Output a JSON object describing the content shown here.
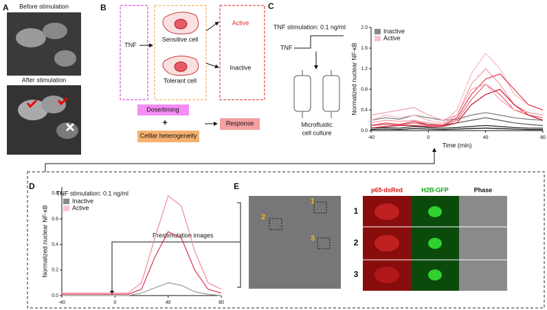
{
  "panel_labels": [
    "A",
    "B",
    "C",
    "D",
    "E"
  ],
  "panel_a": {
    "before": "Before stimulation",
    "after": "After stimulation"
  },
  "panel_b": {
    "input": "TNF",
    "sensitive": "Sensitive cell",
    "tolerant": "Tolerant cell",
    "active": "Active",
    "inactive": "Inactive",
    "dose": "Dose/timing",
    "plus": "+",
    "heterogeneity": "Celllar heterogeneity",
    "response": "Response"
  },
  "panel_c": {
    "stimulation": "TNF stimulation: 0.1 ng/ml",
    "input": "TNF",
    "culture": [
      "Microfluidic",
      "cell culture"
    ]
  },
  "panel_e": {
    "annotation": "Prestimulation images",
    "regions": [
      "1",
      "2",
      "3"
    ],
    "channels": [
      "p65-dsRed",
      "H2B-GFP",
      "Phase"
    ],
    "rows": [
      "1",
      "2",
      "3"
    ]
  },
  "chart_data": [
    {
      "type": "line",
      "x_label": "Time (min)",
      "y_label": "Normalized nuclear NF-κB",
      "x": [
        -40,
        -30,
        -20,
        -10,
        0,
        10,
        20,
        30,
        40,
        50,
        60,
        70,
        80
      ],
      "xlim": [
        -40,
        80
      ],
      "xticks": [
        -40,
        0,
        40,
        80
      ],
      "ylim": [
        0,
        2
      ],
      "yticks": [
        {
          "value": 0,
          "label": "0.0"
        },
        {
          "value": 0.4,
          "label": "0.4"
        },
        {
          "value": 0.8,
          "label": "0.8"
        },
        {
          "value": 1.2,
          "label": "1.2"
        },
        {
          "value": 1.6,
          "label": "1.6"
        },
        {
          "value": 2,
          "label": "2.0"
        }
      ],
      "legend": [
        {
          "name": "Inactive",
          "color": "#888888"
        },
        {
          "name": "Active",
          "color": "#f7c4cc"
        }
      ],
      "series": [
        {
          "color": "#555555",
          "values": [
            0.1,
            0.12,
            0.1,
            0.15,
            0.12,
            0.1,
            0.15,
            0.2,
            0.25,
            0.2,
            0.15,
            0.12,
            0.1
          ]
        },
        {
          "color": "#222222",
          "values": [
            0.05,
            0.06,
            0.05,
            0.08,
            0.06,
            0.05,
            0.06,
            0.08,
            0.1,
            0.08,
            0.06,
            0.05,
            0.05
          ]
        },
        {
          "color": "#777777",
          "values": [
            0.2,
            0.25,
            0.22,
            0.3,
            0.25,
            0.2,
            0.22,
            0.3,
            0.35,
            0.3,
            0.25,
            0.22,
            0.2
          ]
        },
        {
          "color": "#000000",
          "values": [
            0.02,
            0.03,
            0.02,
            0.04,
            0.03,
            0.02,
            0.03,
            0.04,
            0.05,
            0.04,
            0.03,
            0.02,
            0.02
          ]
        },
        {
          "color": "#e8606e",
          "values": [
            0.1,
            0.12,
            0.1,
            0.15,
            0.1,
            0.1,
            0.2,
            0.6,
            0.9,
            0.7,
            0.4,
            0.3,
            0.25
          ]
        },
        {
          "color": "#f49aa6",
          "values": [
            0.15,
            0.2,
            0.18,
            0.2,
            0.15,
            0.12,
            0.3,
            0.9,
            1.2,
            0.9,
            0.5,
            0.35,
            0.3
          ]
        },
        {
          "color": "#c8102e",
          "values": [
            0.05,
            0.08,
            0.1,
            0.1,
            0.08,
            0.08,
            0.15,
            0.5,
            0.7,
            0.8,
            0.5,
            0.3,
            0.2
          ]
        },
        {
          "color": "#f7b8c0",
          "values": [
            0.2,
            0.3,
            0.25,
            0.3,
            0.2,
            0.15,
            0.4,
            1.1,
            1.5,
            1.2,
            0.7,
            0.5,
            0.4
          ]
        },
        {
          "color": "#e03a4e",
          "values": [
            0.1,
            0.15,
            0.12,
            0.18,
            0.12,
            0.1,
            0.25,
            0.7,
            1.0,
            1.1,
            0.8,
            0.5,
            0.4
          ]
        },
        {
          "color": "#f2a0aa",
          "values": [
            0.3,
            0.35,
            0.4,
            0.45,
            0.3,
            0.2,
            0.3,
            0.8,
            0.9,
            0.6,
            0.4,
            0.35,
            0.3
          ]
        }
      ]
    },
    {
      "type": "line",
      "annotation": "TNF stimulation: 0.1 ng/ml",
      "y_label": "Normalized nuclear NF-κB",
      "x": [
        -40,
        -30,
        -20,
        -10,
        0,
        10,
        20,
        30,
        40,
        50,
        60,
        70,
        80
      ],
      "xlim": [
        -40,
        80
      ],
      "xticks": [
        -40,
        0,
        40,
        80
      ],
      "ylim": [
        0,
        0.85
      ],
      "yticks": [
        {
          "value": 0,
          "label": "0.0"
        },
        {
          "value": 0.2,
          "label": "0.2"
        },
        {
          "value": 0.4,
          "label": "0.4"
        },
        {
          "value": 0.6,
          "label": "0.6"
        },
        {
          "value": 0.8,
          "label": "0.8"
        }
      ],
      "legend": [
        {
          "name": "Inactive",
          "color": "#888888"
        },
        {
          "name": "Active",
          "color": "#f7c4cc"
        }
      ],
      "series": [
        {
          "color": "#999999",
          "values": [
            0,
            0,
            0,
            0,
            0,
            0,
            0.02,
            0.06,
            0.1,
            0.08,
            0.03,
            0.01,
            0
          ]
        },
        {
          "color": "#f08a98",
          "values": [
            0.02,
            0.02,
            0.02,
            0.02,
            0.02,
            0.02,
            0.1,
            0.45,
            0.78,
            0.7,
            0.35,
            0.1,
            0.05
          ]
        },
        {
          "color": "#d83050",
          "values": [
            0.01,
            0.01,
            0.01,
            0.01,
            0.01,
            0.01,
            0.05,
            0.3,
            0.5,
            0.45,
            0.2,
            0.05,
            0.02
          ]
        }
      ]
    }
  ]
}
